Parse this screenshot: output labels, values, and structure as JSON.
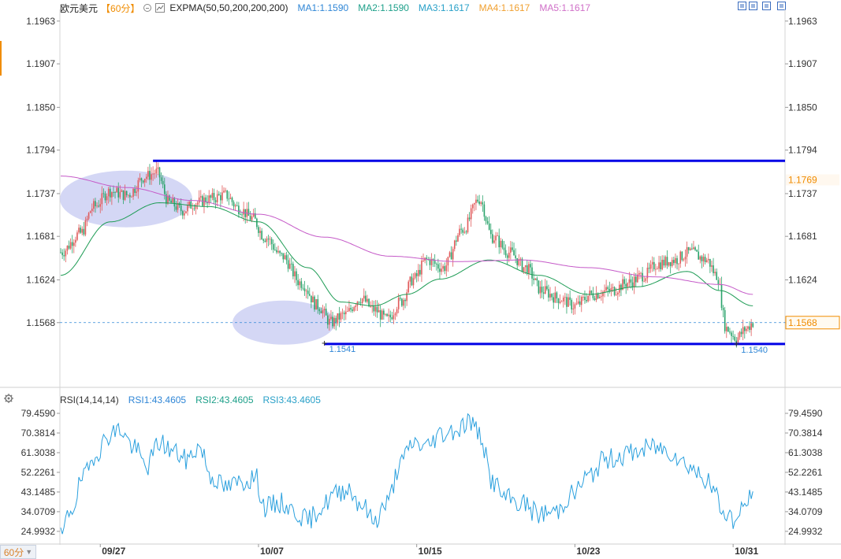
{
  "header": {
    "symbol": "欧元美元",
    "period": "【60分】",
    "indicator": "EXPMA(50,50,200,200,200)",
    "ma": [
      {
        "label": "MA1:1.1590",
        "color": "#2f86d6"
      },
      {
        "label": "MA2:1.1590",
        "color": "#1ea08a"
      },
      {
        "label": "MA3:1.1617",
        "color": "#28a0c8"
      },
      {
        "label": "MA4:1.1617",
        "color": "#f0a030"
      },
      {
        "label": "MA5:1.1617",
        "color": "#d070c8"
      }
    ]
  },
  "rsi_header": {
    "indicator": "RSI(14,14,14)",
    "values": [
      {
        "label": "RSI1:43.4605",
        "color": "#2f86d6"
      },
      {
        "label": "RSI2:43.4605",
        "color": "#1ea08a"
      },
      {
        "label": "RSI3:43.4605",
        "color": "#28a0c8"
      }
    ]
  },
  "period_button": {
    "label": "60分"
  },
  "colors": {
    "up": "#e05a5a",
    "down": "#2aa36b",
    "level_line": "#0000e6",
    "ema_short": "#1e9c55",
    "ema_long": "#c55ac8",
    "rsi": "#2aa0de",
    "current_price": "#f08c00",
    "highlight": "#c9cdf3"
  },
  "chart_data": [
    {
      "type": "candlestick",
      "title": "欧元美元",
      "y_ticks": [
        "1.1963",
        "1.1907",
        "1.1850",
        "1.1794",
        "1.1737",
        "1.1681",
        "1.1624",
        "1.1568"
      ],
      "ylim": [
        1.151,
        1.197
      ],
      "x_ticks": [
        "09/27",
        "10/07",
        "10/15",
        "10/23",
        "10/31"
      ],
      "bar_count": 440,
      "tick_bar_index": [
        24,
        120,
        216,
        312,
        408
      ],
      "current_price": 1.1568,
      "current_price_label": "1.1568",
      "current_price_tag": "1.1568",
      "top_right_marker": "1.1769",
      "low_labels": [
        {
          "label": "1.1541",
          "bar": 160,
          "price": 1.1541
        },
        {
          "label": "1.1540",
          "bar": 410,
          "price": 1.154
        }
      ],
      "horizontal_levels": [
        {
          "price": 1.178,
          "from_bar": 56
        },
        {
          "price": 1.154,
          "from_bar": 160
        }
      ],
      "anchors": [
        [
          0,
          1.166
        ],
        [
          12,
          1.1685
        ],
        [
          20,
          1.172
        ],
        [
          30,
          1.174
        ],
        [
          40,
          1.1735
        ],
        [
          52,
          1.176
        ],
        [
          58,
          1.1765
        ],
        [
          66,
          1.1725
        ],
        [
          74,
          1.1715
        ],
        [
          82,
          1.1725
        ],
        [
          90,
          1.173
        ],
        [
          100,
          1.1735
        ],
        [
          108,
          1.1718
        ],
        [
          116,
          1.1705
        ],
        [
          124,
          1.168
        ],
        [
          134,
          1.1655
        ],
        [
          146,
          1.162
        ],
        [
          156,
          1.159
        ],
        [
          164,
          1.1568
        ],
        [
          172,
          1.1578
        ],
        [
          182,
          1.16
        ],
        [
          190,
          1.1585
        ],
        [
          198,
          1.1572
        ],
        [
          206,
          1.1595
        ],
        [
          214,
          1.1625
        ],
        [
          222,
          1.165
        ],
        [
          232,
          1.164
        ],
        [
          244,
          1.169
        ],
        [
          254,
          1.173
        ],
        [
          262,
          1.168
        ],
        [
          272,
          1.166
        ],
        [
          282,
          1.164
        ],
        [
          292,
          1.161
        ],
        [
          302,
          1.16
        ],
        [
          312,
          1.159
        ],
        [
          322,
          1.1605
        ],
        [
          334,
          1.161
        ],
        [
          344,
          1.162
        ],
        [
          354,
          1.163
        ],
        [
          362,
          1.1645
        ],
        [
          372,
          1.165
        ],
        [
          382,
          1.166
        ],
        [
          392,
          1.165
        ],
        [
          398,
          1.163
        ],
        [
          404,
          1.156
        ],
        [
          410,
          1.1548
        ],
        [
          416,
          1.156
        ],
        [
          420,
          1.1568
        ]
      ],
      "ema_short_anchors": [
        [
          0,
          1.163
        ],
        [
          30,
          1.17
        ],
        [
          60,
          1.1725
        ],
        [
          90,
          1.172
        ],
        [
          120,
          1.17
        ],
        [
          150,
          1.164
        ],
        [
          170,
          1.1595
        ],
        [
          190,
          1.159
        ],
        [
          210,
          1.1605
        ],
        [
          230,
          1.1625
        ],
        [
          260,
          1.165
        ],
        [
          290,
          1.163
        ],
        [
          320,
          1.1605
        ],
        [
          350,
          1.1615
        ],
        [
          380,
          1.1635
        ],
        [
          400,
          1.161
        ],
        [
          420,
          1.159
        ]
      ],
      "ema_long_anchors": [
        [
          0,
          1.176
        ],
        [
          40,
          1.1745
        ],
        [
          80,
          1.1728
        ],
        [
          120,
          1.171
        ],
        [
          160,
          1.168
        ],
        [
          200,
          1.1655
        ],
        [
          240,
          1.1648
        ],
        [
          280,
          1.165
        ],
        [
          320,
          1.164
        ],
        [
          360,
          1.1628
        ],
        [
          400,
          1.1618
        ],
        [
          420,
          1.1605
        ]
      ]
    },
    {
      "type": "line",
      "title": "RSI(14,14,14)",
      "y_ticks": [
        "79.4590",
        "70.3814",
        "61.3038",
        "52.2261",
        "43.1485",
        "34.0709",
        "24.9932"
      ],
      "ylim": [
        19.5,
        82.0
      ],
      "series": [
        {
          "name": "RSI1",
          "last": 43.4605
        }
      ],
      "anchors": [
        [
          0,
          22
        ],
        [
          6,
          35
        ],
        [
          14,
          50
        ],
        [
          22,
          62
        ],
        [
          30,
          70
        ],
        [
          36,
          72
        ],
        [
          44,
          64
        ],
        [
          52,
          55
        ],
        [
          60,
          66
        ],
        [
          68,
          62
        ],
        [
          76,
          58
        ],
        [
          84,
          64
        ],
        [
          92,
          50
        ],
        [
          100,
          45
        ],
        [
          110,
          48
        ],
        [
          118,
          50
        ],
        [
          124,
          36
        ],
        [
          134,
          38
        ],
        [
          142,
          34
        ],
        [
          150,
          30
        ],
        [
          158,
          36
        ],
        [
          166,
          42
        ],
        [
          174,
          45
        ],
        [
          182,
          38
        ],
        [
          190,
          30
        ],
        [
          198,
          38
        ],
        [
          206,
          56
        ],
        [
          214,
          66
        ],
        [
          222,
          64
        ],
        [
          230,
          70
        ],
        [
          240,
          72
        ],
        [
          248,
          76
        ],
        [
          254,
          70
        ],
        [
          262,
          48
        ],
        [
          270,
          40
        ],
        [
          280,
          38
        ],
        [
          290,
          33
        ],
        [
          300,
          34
        ],
        [
          310,
          42
        ],
        [
          320,
          50
        ],
        [
          330,
          58
        ],
        [
          340,
          60
        ],
        [
          350,
          62
        ],
        [
          360,
          64
        ],
        [
          370,
          62
        ],
        [
          380,
          56
        ],
        [
          390,
          50
        ],
        [
          396,
          44
        ],
        [
          402,
          34
        ],
        [
          410,
          30
        ],
        [
          416,
          38
        ],
        [
          420,
          43.46
        ]
      ]
    }
  ]
}
